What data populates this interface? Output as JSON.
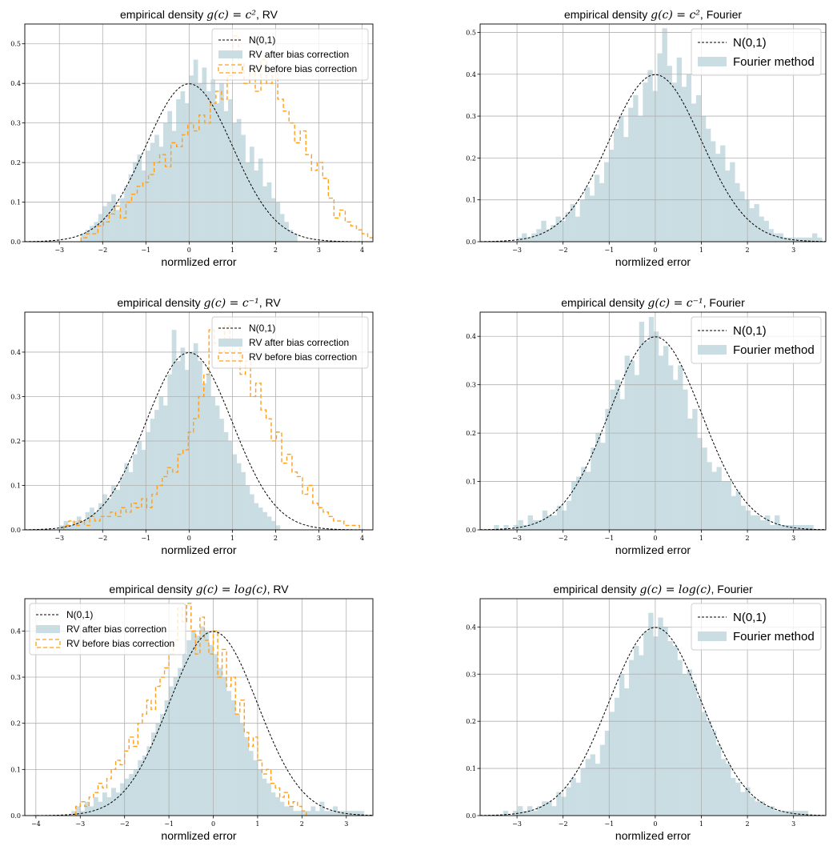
{
  "colors": {
    "hist_fill": "#c9dde3",
    "before_line": "#ff9f1c",
    "normal_line": "#000000",
    "grid": "#b0b0b0"
  },
  "chart_data": [
    {
      "id": "c2-rv",
      "type": "bar",
      "title_pre": "empirical density ",
      "title_math": "g(c) = c²",
      "title_post": ", RV",
      "xlabel": "normlized error",
      "xlim": [
        -3.8,
        4.25
      ],
      "ylim": [
        0,
        0.55
      ],
      "xticks": [
        -3,
        -2,
        -1,
        0,
        1,
        2,
        3,
        4
      ],
      "yticks": [
        0.0,
        0.1,
        0.2,
        0.3,
        0.4,
        0.5
      ],
      "legend_position": "upper-right",
      "legend_size": "small",
      "normal": {
        "label": "N(0,1)"
      },
      "after": {
        "label": "RV after bias correction",
        "start": -2.5,
        "width": 0.1,
        "values": [
          0.02,
          0.03,
          0.04,
          0.05,
          0.07,
          0.09,
          0.1,
          0.12,
          0.08,
          0.11,
          0.14,
          0.17,
          0.2,
          0.22,
          0.18,
          0.23,
          0.25,
          0.27,
          0.24,
          0.3,
          0.33,
          0.28,
          0.36,
          0.38,
          0.35,
          0.42,
          0.46,
          0.4,
          0.44,
          0.38,
          0.41,
          0.35,
          0.4,
          0.33,
          0.36,
          0.3,
          0.31,
          0.27,
          0.2,
          0.24,
          0.18,
          0.21,
          0.14,
          0.15,
          0.11,
          0.1,
          0.07,
          0.05,
          0.03,
          0.02
        ]
      },
      "before": {
        "label": "RV before bias correction",
        "start": -2.5,
        "width": 0.13,
        "values": [
          0.01,
          0.02,
          0.02,
          0.04,
          0.05,
          0.07,
          0.09,
          0.06,
          0.1,
          0.12,
          0.14,
          0.15,
          0.17,
          0.2,
          0.22,
          0.19,
          0.25,
          0.24,
          0.27,
          0.3,
          0.28,
          0.32,
          0.3,
          0.35,
          0.38,
          0.36,
          0.42,
          0.52,
          0.45,
          0.4,
          0.44,
          0.38,
          0.46,
          0.4,
          0.43,
          0.36,
          0.33,
          0.3,
          0.25,
          0.28,
          0.22,
          0.18,
          0.2,
          0.16,
          0.11,
          0.06,
          0.08,
          0.05,
          0.04,
          0.03,
          0.02,
          0.01,
          0.02,
          0.01
        ]
      }
    },
    {
      "id": "c2-fourier",
      "type": "bar",
      "title_pre": "empirical density ",
      "title_math": "g(c) = c²",
      "title_post": ", Fourier",
      "xlabel": "normlized error",
      "xlim": [
        -3.8,
        3.7
      ],
      "ylim": [
        0,
        0.52
      ],
      "xticks": [
        -3,
        -2,
        -1,
        0,
        1,
        2,
        3
      ],
      "yticks": [
        0.0,
        0.1,
        0.2,
        0.3,
        0.4,
        0.5
      ],
      "legend_position": "upper-right",
      "legend_size": "large",
      "normal": {
        "label": "N(0,1)"
      },
      "after": {
        "label": "Fourier method",
        "start": -3.0,
        "width": 0.105,
        "values": [
          0.01,
          0.02,
          0.01,
          0.02,
          0.03,
          0.05,
          0.03,
          0.04,
          0.06,
          0.05,
          0.07,
          0.09,
          0.06,
          0.1,
          0.13,
          0.11,
          0.16,
          0.14,
          0.19,
          0.22,
          0.27,
          0.3,
          0.25,
          0.32,
          0.35,
          0.3,
          0.38,
          0.41,
          0.36,
          0.45,
          0.51,
          0.42,
          0.38,
          0.44,
          0.37,
          0.4,
          0.33,
          0.35,
          0.3,
          0.27,
          0.24,
          0.21,
          0.23,
          0.17,
          0.19,
          0.14,
          0.12,
          0.1,
          0.08,
          0.09,
          0.06,
          0.05,
          0.03,
          0.02,
          0.02,
          0.01,
          0.01,
          0.01,
          0.01,
          0.01,
          0.01,
          0.02,
          0.01
        ]
      }
    },
    {
      "id": "cinv-rv",
      "type": "bar",
      "title_pre": "empirical density ",
      "title_math": "g(c) = c⁻¹",
      "title_post": ", RV",
      "xlabel": "normlized error",
      "xlim": [
        -3.8,
        4.25
      ],
      "ylim": [
        0,
        0.49
      ],
      "xticks": [
        -3,
        -2,
        -1,
        0,
        1,
        2,
        3,
        4
      ],
      "yticks": [
        0.0,
        0.1,
        0.2,
        0.3,
        0.4
      ],
      "legend_position": "upper-right",
      "legend_size": "small",
      "normal": {
        "label": "N(0,1)"
      },
      "after": {
        "label": "RV after bias correction",
        "start": -3.0,
        "width": 0.1,
        "values": [
          0.01,
          0.02,
          0.01,
          0.02,
          0.03,
          0.02,
          0.04,
          0.05,
          0.04,
          0.06,
          0.08,
          0.07,
          0.1,
          0.09,
          0.12,
          0.15,
          0.13,
          0.17,
          0.2,
          0.18,
          0.22,
          0.25,
          0.27,
          0.3,
          0.28,
          0.35,
          0.45,
          0.38,
          0.41,
          0.36,
          0.4,
          0.42,
          0.38,
          0.33,
          0.35,
          0.3,
          0.28,
          0.25,
          0.22,
          0.2,
          0.17,
          0.15,
          0.13,
          0.1,
          0.08,
          0.06,
          0.05,
          0.04,
          0.03,
          0.02,
          0.01
        ]
      },
      "before": {
        "label": "RV before bias correction",
        "start": -2.9,
        "width": 0.12,
        "values": [
          0.01,
          0.02,
          0.01,
          0.02,
          0.01,
          0.03,
          0.02,
          0.03,
          0.03,
          0.04,
          0.03,
          0.05,
          0.04,
          0.06,
          0.05,
          0.07,
          0.05,
          0.08,
          0.1,
          0.12,
          0.14,
          0.13,
          0.17,
          0.18,
          0.22,
          0.25,
          0.3,
          0.35,
          0.45,
          0.42,
          0.4,
          0.46,
          0.4,
          0.42,
          0.35,
          0.38,
          0.3,
          0.33,
          0.27,
          0.25,
          0.2,
          0.22,
          0.15,
          0.17,
          0.13,
          0.12,
          0.08,
          0.1,
          0.06,
          0.05,
          0.04,
          0.03,
          0.02,
          0.02,
          0.01,
          0.01,
          0.01
        ]
      }
    },
    {
      "id": "cinv-fourier",
      "type": "bar",
      "title_pre": "empirical density ",
      "title_math": "g(c) = c⁻¹",
      "title_post": ", Fourier",
      "xlabel": "normlized error",
      "xlim": [
        -3.8,
        3.7
      ],
      "ylim": [
        0,
        0.45
      ],
      "xticks": [
        -3,
        -2,
        -1,
        0,
        1,
        2,
        3
      ],
      "yticks": [
        0.0,
        0.1,
        0.2,
        0.3,
        0.4
      ],
      "legend_position": "upper-right",
      "legend_size": "large",
      "normal": {
        "label": "N(0,1)"
      },
      "after": {
        "label": "Fourier method",
        "start": -3.5,
        "width": 0.105,
        "values": [
          0.01,
          0.0,
          0.01,
          0.0,
          0.01,
          0.02,
          0.01,
          0.03,
          0.02,
          0.02,
          0.04,
          0.03,
          0.03,
          0.05,
          0.04,
          0.06,
          0.1,
          0.11,
          0.13,
          0.12,
          0.17,
          0.2,
          0.18,
          0.25,
          0.29,
          0.31,
          0.27,
          0.36,
          0.35,
          0.32,
          0.43,
          0.39,
          0.44,
          0.41,
          0.36,
          0.38,
          0.34,
          0.31,
          0.34,
          0.29,
          0.23,
          0.25,
          0.19,
          0.17,
          0.14,
          0.12,
          0.13,
          0.1,
          0.1,
          0.07,
          0.08,
          0.05,
          0.04,
          0.03,
          0.03,
          0.02,
          0.03,
          0.01,
          0.03,
          0.01,
          0.01,
          0.01,
          0.01,
          0.01,
          0.01,
          0.01
        ]
      }
    },
    {
      "id": "log-rv",
      "type": "bar",
      "title_pre": "empirical density ",
      "title_math": "g(c) = log(c)",
      "title_post": ", RV",
      "xlabel": "normlized error",
      "xlim": [
        -4.25,
        3.6
      ],
      "ylim": [
        0,
        0.47
      ],
      "xticks": [
        -4,
        -3,
        -2,
        -1,
        0,
        1,
        2,
        3
      ],
      "yticks": [
        0.0,
        0.1,
        0.2,
        0.3,
        0.4
      ],
      "legend_position": "upper-left",
      "legend_size": "small",
      "normal": {
        "label": "N(0,1)"
      },
      "after": {
        "label": "RV after bias correction",
        "start": -3.2,
        "width": 0.1,
        "values": [
          0.01,
          0.02,
          0.01,
          0.03,
          0.02,
          0.04,
          0.03,
          0.05,
          0.04,
          0.06,
          0.05,
          0.07,
          0.08,
          0.09,
          0.1,
          0.12,
          0.13,
          0.15,
          0.18,
          0.2,
          0.22,
          0.25,
          0.28,
          0.3,
          0.32,
          0.35,
          0.38,
          0.4,
          0.39,
          0.41,
          0.4,
          0.37,
          0.35,
          0.32,
          0.3,
          0.27,
          0.25,
          0.22,
          0.2,
          0.17,
          0.14,
          0.12,
          0.1,
          0.08,
          0.07,
          0.05,
          0.04,
          0.03,
          0.02,
          0.02,
          0.01,
          0.01,
          0.01,
          0.01,
          0.02,
          0.01,
          0.03,
          0.01,
          0.01,
          0.02,
          0.01,
          0.01,
          0.01,
          0.01,
          0.01,
          0.01
        ]
      },
      "before": {
        "label": "RV before bias correction",
        "start": -3.1,
        "width": 0.1,
        "values": [
          0.02,
          0.03,
          0.02,
          0.04,
          0.05,
          0.07,
          0.06,
          0.08,
          0.1,
          0.12,
          0.11,
          0.14,
          0.17,
          0.15,
          0.2,
          0.22,
          0.25,
          0.23,
          0.28,
          0.3,
          0.32,
          0.35,
          0.38,
          0.45,
          0.42,
          0.46,
          0.4,
          0.35,
          0.43,
          0.38,
          0.35,
          0.4,
          0.3,
          0.36,
          0.28,
          0.3,
          0.22,
          0.25,
          0.18,
          0.15,
          0.17,
          0.12,
          0.09,
          0.1,
          0.07,
          0.06,
          0.04,
          0.05,
          0.02,
          0.03,
          0.02,
          0.01
        ]
      }
    },
    {
      "id": "log-fourier",
      "type": "bar",
      "title_pre": "empirical density ",
      "title_math": "g(c) = log(c)",
      "title_post": ", Fourier",
      "xlabel": "normlized error",
      "xlim": [
        -3.8,
        3.7
      ],
      "ylim": [
        0,
        0.46
      ],
      "xticks": [
        -3,
        -2,
        -1,
        0,
        1,
        2,
        3
      ],
      "yticks": [
        0.0,
        0.1,
        0.2,
        0.3,
        0.4
      ],
      "legend_position": "upper-right",
      "legend_size": "large",
      "normal": {
        "label": "N(0,1)"
      },
      "after": {
        "label": "Fourier method",
        "start": -3.3,
        "width": 0.105,
        "values": [
          0.01,
          0.0,
          0.01,
          0.02,
          0.01,
          0.02,
          0.01,
          0.02,
          0.03,
          0.03,
          0.02,
          0.05,
          0.04,
          0.06,
          0.08,
          0.07,
          0.1,
          0.12,
          0.13,
          0.11,
          0.15,
          0.18,
          0.22,
          0.25,
          0.3,
          0.27,
          0.33,
          0.36,
          0.34,
          0.39,
          0.43,
          0.38,
          0.42,
          0.4,
          0.37,
          0.36,
          0.33,
          0.3,
          0.31,
          0.28,
          0.25,
          0.22,
          0.2,
          0.18,
          0.15,
          0.12,
          0.11,
          0.08,
          0.07,
          0.05,
          0.06,
          0.04,
          0.03,
          0.03,
          0.02,
          0.02,
          0.01,
          0.01,
          0.01,
          0.01,
          0.01,
          0.01,
          0.01
        ]
      }
    }
  ]
}
